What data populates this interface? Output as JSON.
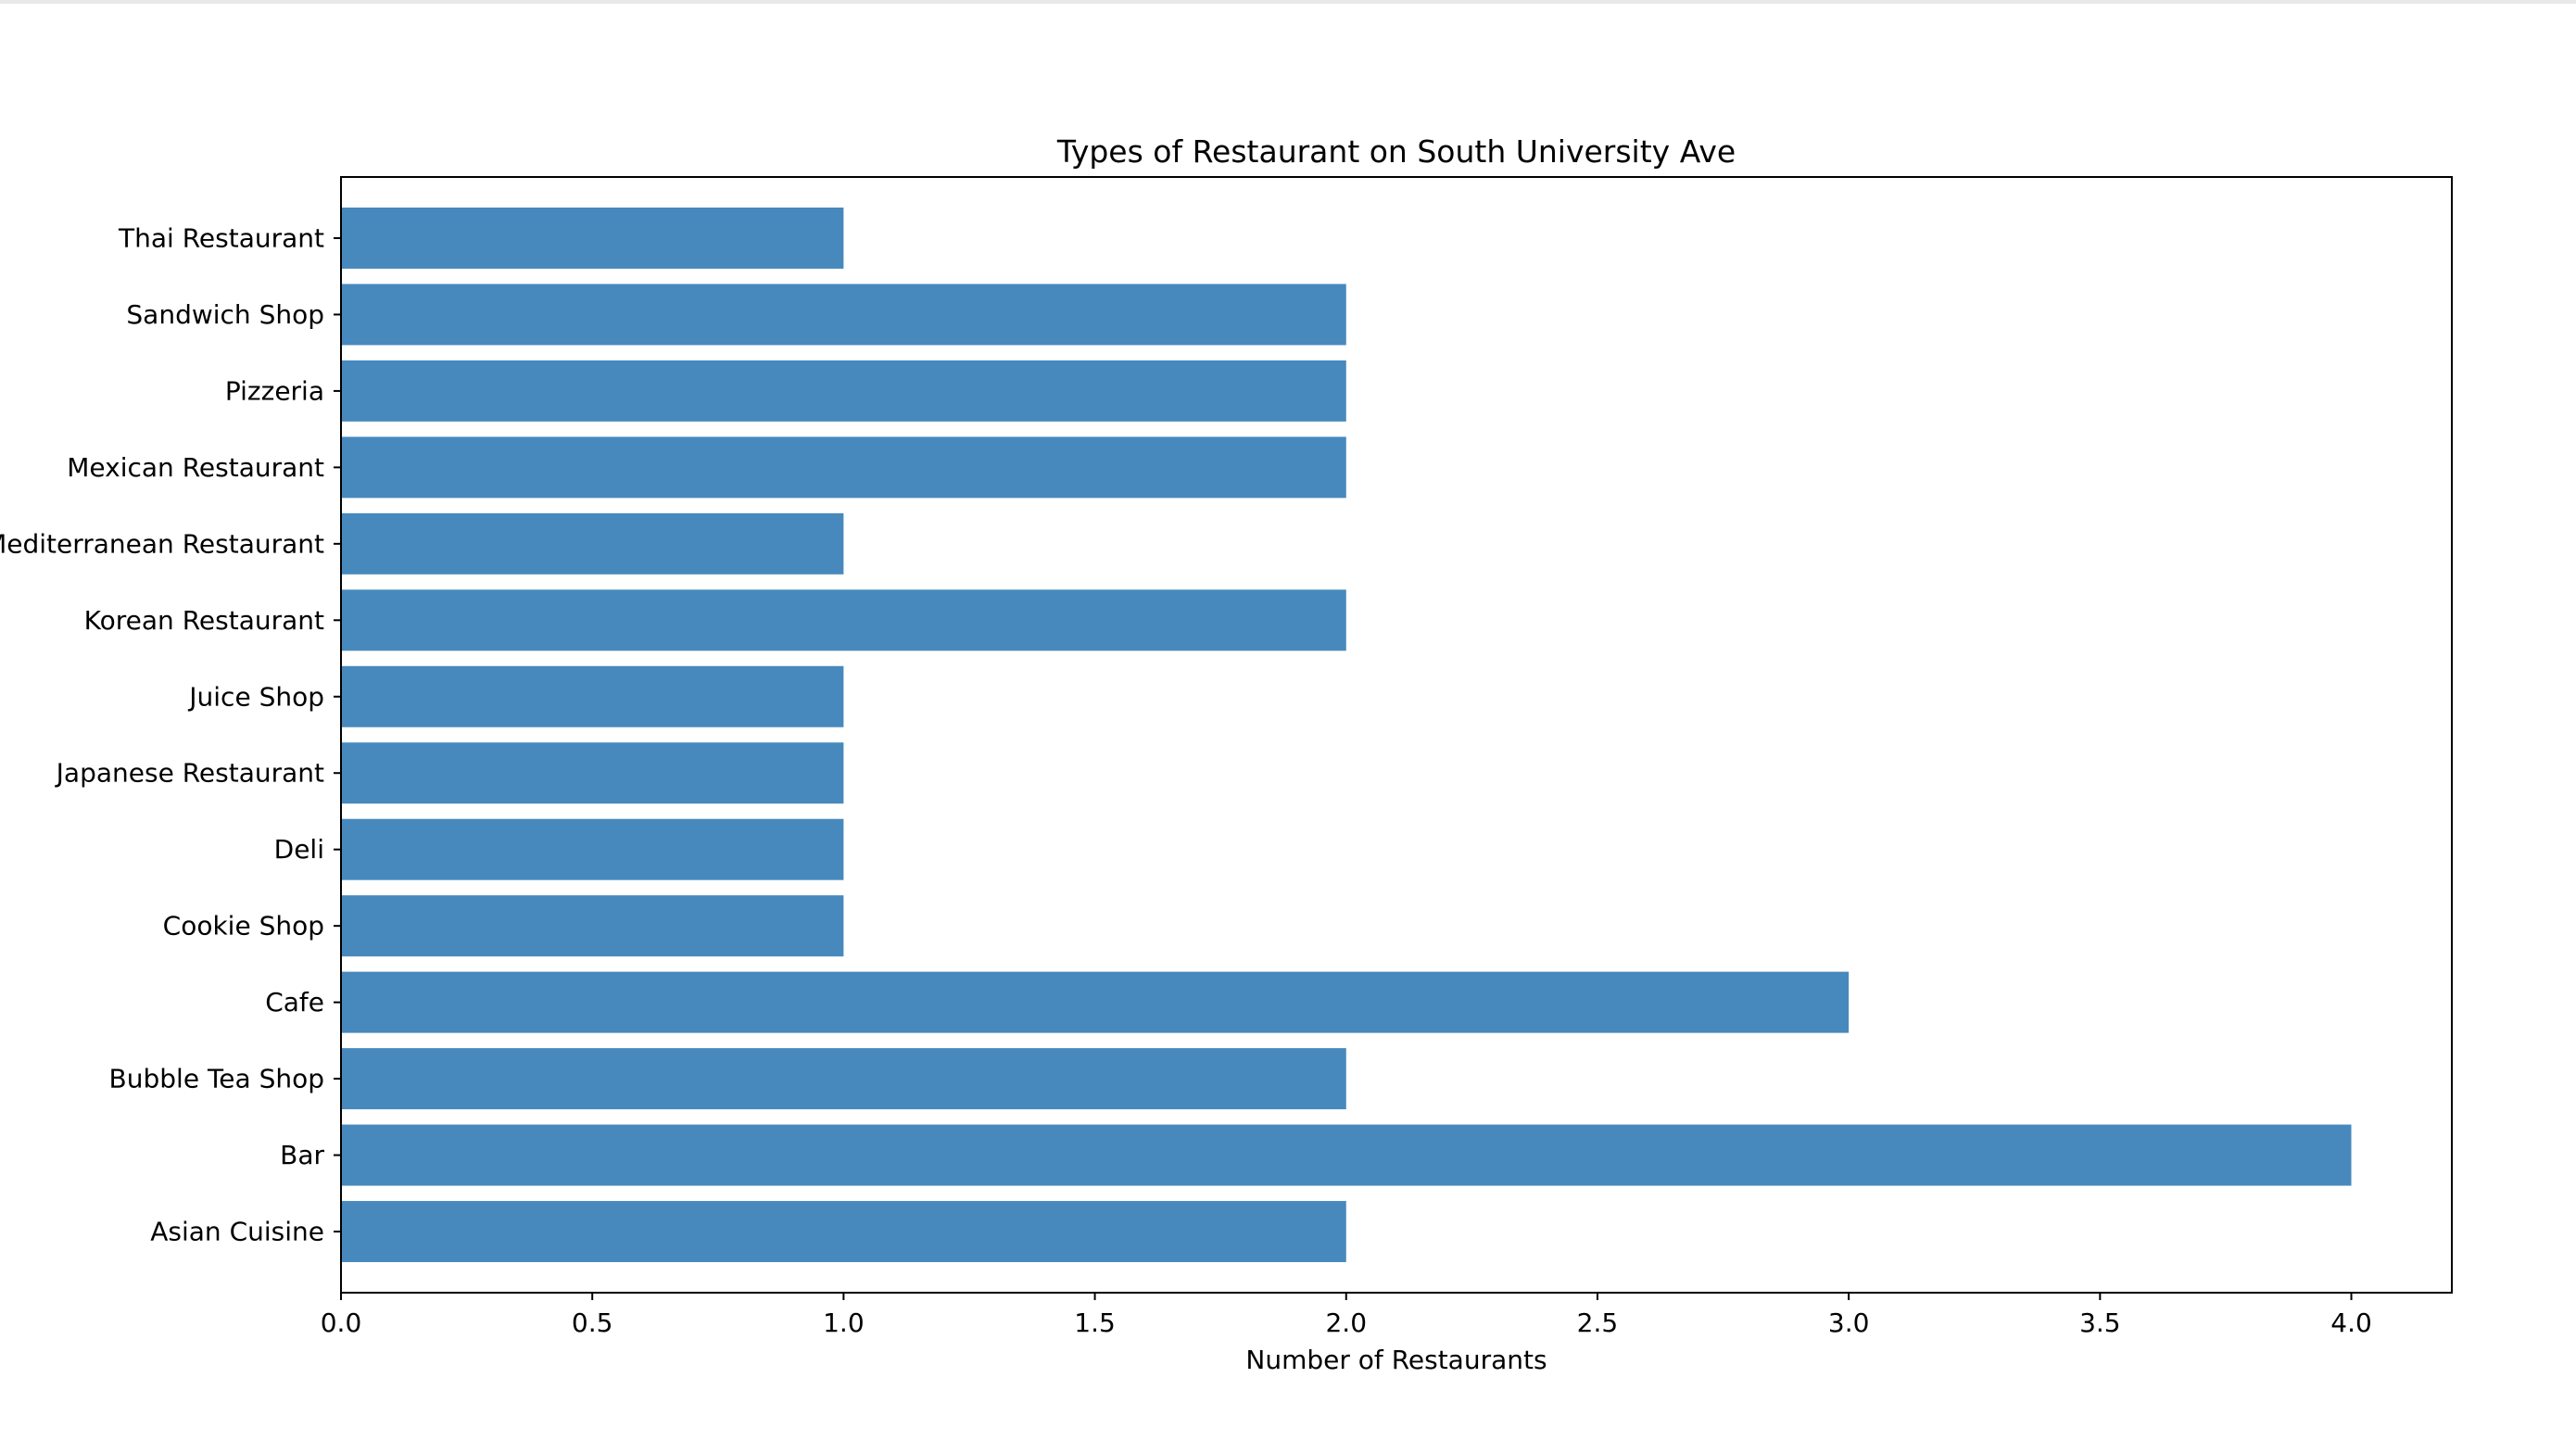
{
  "chart_data": {
    "type": "bar",
    "orientation": "horizontal",
    "title": "Types of Restaurant on South University Ave",
    "xlabel": "Number of Restaurants",
    "ylabel": "",
    "categories": [
      "Asian Cuisine ",
      "Bar",
      "Bubble Tea Shop",
      "Cafe",
      "Cookie Shop",
      "Deli",
      "Japanese Restaurant",
      "Juice Shop",
      "Korean Restaurant",
      "Mediterranean Restaurant",
      "Mexican Restaurant",
      "Pizzeria",
      "Sandwich Shop",
      "Thai Restaurant"
    ],
    "values": [
      2,
      4,
      2,
      3,
      1,
      1,
      1,
      1,
      2,
      1,
      2,
      2,
      2,
      1
    ],
    "xlim": [
      0,
      4.2
    ],
    "xticks": [
      "0.0",
      "0.5",
      "1.0",
      "1.5",
      "2.0",
      "2.5",
      "3.0",
      "3.5",
      "4.0"
    ],
    "bar_color": "#4789bd",
    "grid": false,
    "legend": "none"
  }
}
